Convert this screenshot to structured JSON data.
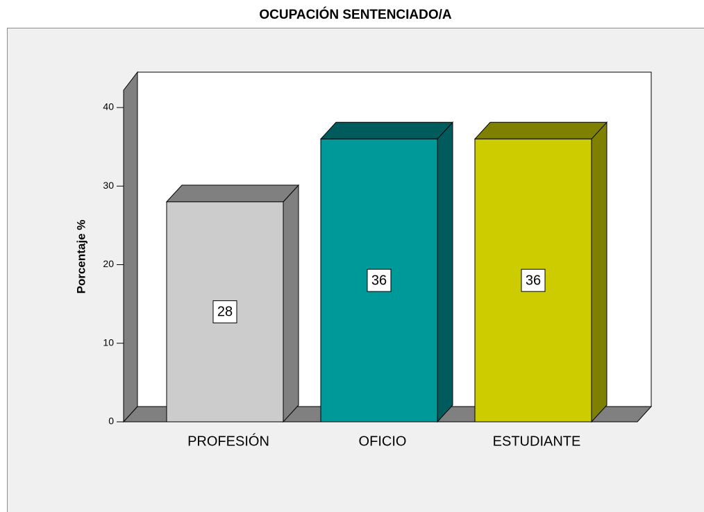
{
  "chart_data": {
    "type": "bar3d",
    "title": "OCUPACIÓN SENTENCIADO/A",
    "y_label": "Porcentaje %",
    "categories": [
      "PROFESIÓN",
      "OFICIO",
      "ESTUDIANTE"
    ],
    "values": [
      28,
      36,
      36
    ],
    "colors": [
      "#cccccc",
      "#009999",
      "#cccc00"
    ],
    "shade_colors": [
      "#808080",
      "#005c5c",
      "#808000"
    ],
    "ylim": [
      0,
      40
    ],
    "yticks": [
      0,
      10,
      20,
      30,
      40
    ]
  }
}
